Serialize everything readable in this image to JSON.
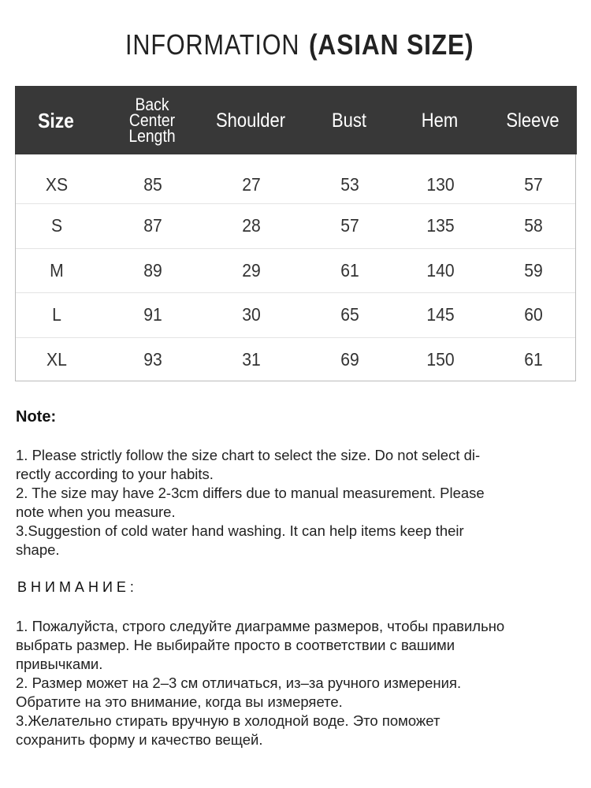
{
  "title": {
    "light": "INFORMATION",
    "bold": "(ASIAN SIZE)"
  },
  "table": {
    "headers": [
      "Size",
      "Back Center\nLength",
      "Shoulder",
      "Bust",
      "Hem",
      "Sleeve"
    ],
    "rows": [
      [
        "XS",
        "85",
        "27",
        "53",
        "130",
        "57"
      ],
      [
        "S",
        "87",
        "28",
        "57",
        "135",
        "58"
      ],
      [
        "M",
        "89",
        "29",
        "61",
        "140",
        "59"
      ],
      [
        "L",
        "91",
        "30",
        "65",
        "145",
        "60"
      ],
      [
        "XL",
        "93",
        "31",
        "69",
        "150",
        "61"
      ]
    ],
    "header_bg": "#383838"
  },
  "note": {
    "heading": "Note:",
    "text": "1. Please strictly follow the size chart  to select the size. Do not select di-\nrectly according to your habits.\n2. The size may have 2-3cm differs due to manual measurement. Please\nnote when you measure.\n3.Suggestion of cold water hand washing. It can help items keep their\nshape."
  },
  "ru_note": {
    "heading": "ВНИМАНИЕ:",
    "text": "1. Пожалуйста, строго следуйте диаграмме размеров, чтобы правильно\nвыбрать размер. Не выбирайте просто в соответствии с вашими\nпривычками.\n2. Размер может на 2–3 см отличаться, из–за ручного измерения.\nОбратите на это внимание, когда вы измеряете.\n3.Желательно стирать вручную в холодной воде. Это поможет\nсохранить форму и качество вещей."
  }
}
